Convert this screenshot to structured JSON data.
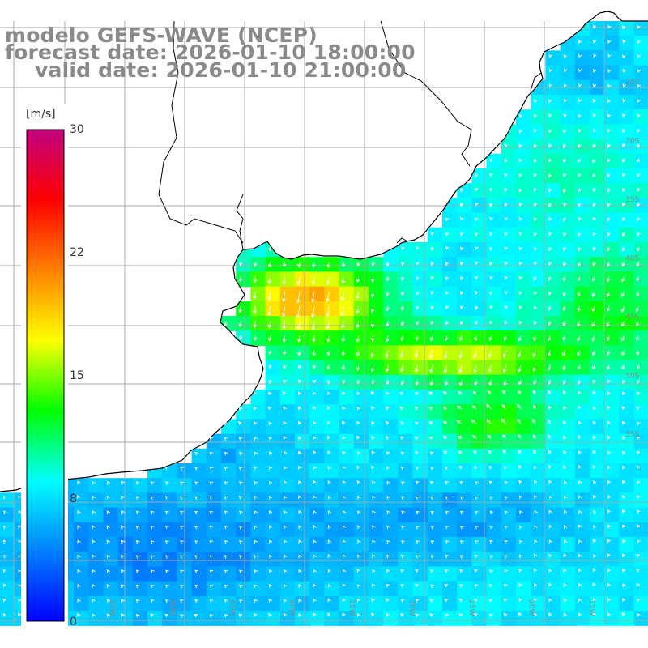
{
  "titles": {
    "model": "modelo GEFS-WAVE (NCEP)",
    "forecast": "forecast date: 2026-01-10 18:00:00",
    "valid": "valid date: 2026-01-10 21:00:00"
  },
  "colorbar": {
    "unit": "[m/s]",
    "min": 0,
    "max": 30,
    "ticks": [
      {
        "value": 30,
        "label": "30"
      },
      {
        "value": 22,
        "label": "22"
      },
      {
        "value": 15,
        "label": "15"
      },
      {
        "value": 8,
        "label": "8"
      },
      {
        "value": 0,
        "label": "0"
      }
    ],
    "colors": [
      "#0000ff",
      "#0080ff",
      "#00ffff",
      "#00ff00",
      "#ffff00",
      "#ff8000",
      "#ff0000",
      "#c00080"
    ]
  },
  "map": {
    "field": "wind speed",
    "land_color": "#ffffff",
    "grid_color": "#a8a8a8",
    "coast_color": "#000000",
    "longitude_labels": [
      "60W",
      "55W",
      "50W",
      "45W",
      "40W",
      "35W",
      "30W",
      "25W",
      "20W",
      "15W"
    ],
    "latitude_labels": [
      "25S",
      "30S",
      "35S",
      "40S",
      "45S",
      "50S",
      "55S"
    ]
  }
}
